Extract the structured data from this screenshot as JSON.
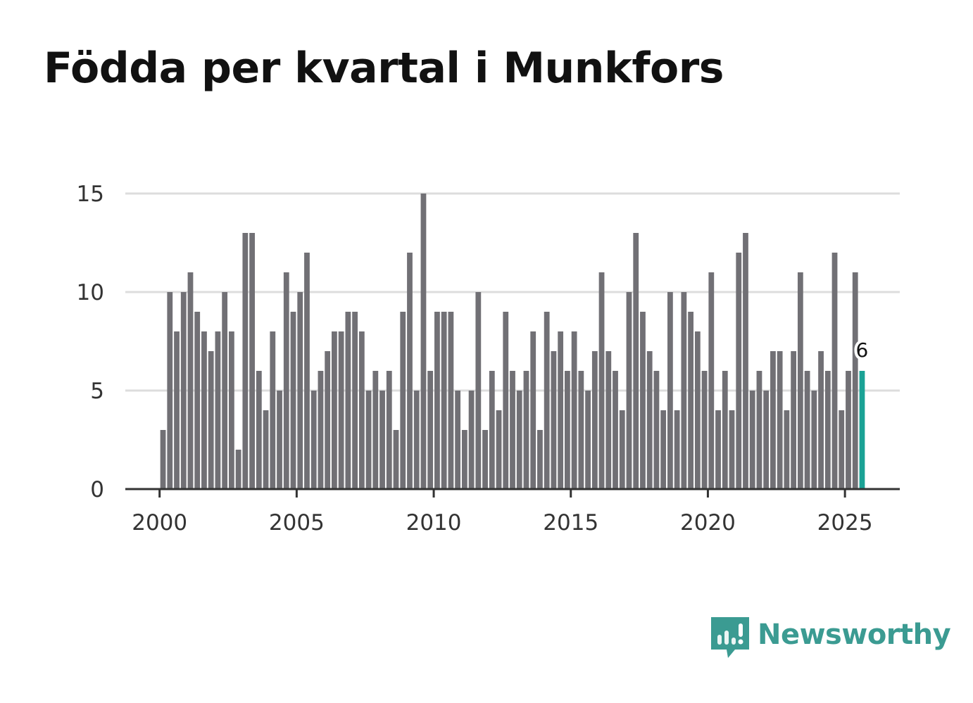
{
  "title": "Födda per kvartal i Munkfors",
  "brand": {
    "name": "Newsworthy",
    "logo_icon": "newsworthy-logo-icon"
  },
  "colors": {
    "bar": "#717075",
    "highlight": "#1aa295",
    "grid": "#dddddd",
    "axis": "#333333",
    "brand": "#3b9b92"
  },
  "chart_data": {
    "type": "bar",
    "title": "Födda per kvartal i Munkfors",
    "xlabel": "",
    "ylabel": "",
    "start_year": 2000,
    "start_quarter": 1,
    "periods_per_year": 4,
    "values": [
      3,
      10,
      8,
      10,
      11,
      9,
      8,
      7,
      8,
      10,
      8,
      2,
      13,
      13,
      6,
      4,
      8,
      5,
      11,
      9,
      10,
      12,
      5,
      6,
      7,
      8,
      8,
      9,
      9,
      8,
      5,
      6,
      5,
      6,
      3,
      9,
      12,
      5,
      15,
      6,
      9,
      9,
      9,
      5,
      3,
      5,
      10,
      3,
      6,
      4,
      9,
      6,
      5,
      6,
      8,
      3,
      9,
      7,
      8,
      6,
      8,
      6,
      5,
      7,
      11,
      7,
      6,
      4,
      10,
      13,
      9,
      7,
      6,
      4,
      10,
      4,
      10,
      9,
      8,
      6,
      11,
      4,
      6,
      4,
      12,
      13,
      5,
      6,
      5,
      7,
      7,
      4,
      7,
      11,
      6,
      5,
      7,
      6,
      12,
      4,
      6,
      11,
      6
    ],
    "highlight_last": true,
    "last_value_label": "6",
    "x_ticks": [
      "2000",
      "2005",
      "2010",
      "2015",
      "2020",
      "2025"
    ],
    "x_tick_years": [
      2000,
      2005,
      2010,
      2015,
      2020,
      2025
    ],
    "x_range": [
      1998.75,
      2027.0
    ],
    "y_ticks": [
      "0",
      "5",
      "10",
      "15"
    ],
    "y_tick_values": [
      0,
      5,
      10,
      15
    ],
    "ylim": [
      0,
      15
    ],
    "grid": true
  }
}
